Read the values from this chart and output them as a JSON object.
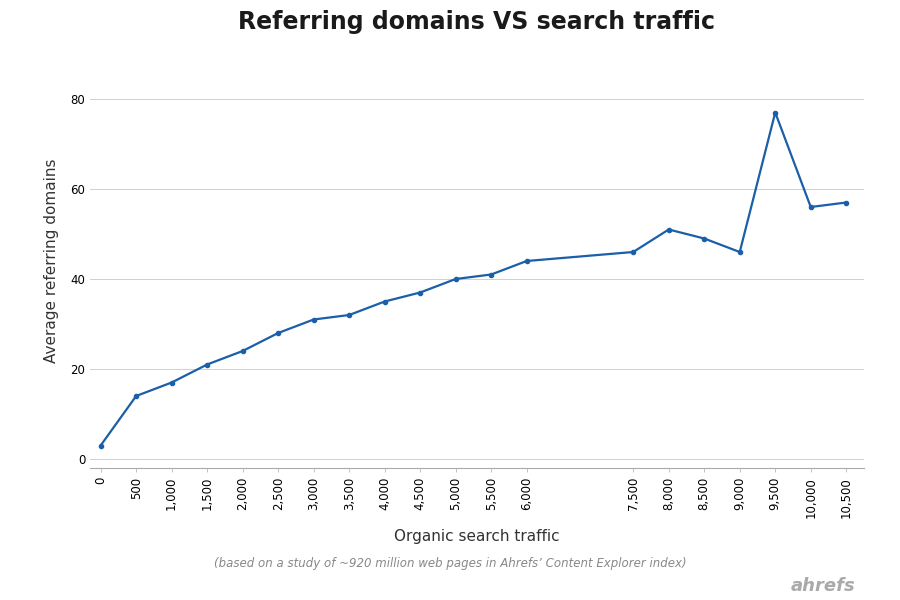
{
  "title": "Referring domains VS search traffic",
  "xlabel": "Organic search traffic",
  "ylabel": "Average referring domains",
  "footnote": "(based on a study of ~920 million web pages in Ahrefs’ Content Explorer index)",
  "branding": "ahrefs",
  "x": [
    0,
    500,
    1000,
    1500,
    2000,
    2500,
    3000,
    3500,
    4000,
    4500,
    5000,
    5500,
    6000,
    7500,
    8000,
    8500,
    9000,
    9500,
    10000,
    10500
  ],
  "y": [
    3,
    14,
    17,
    21,
    24,
    28,
    31,
    32,
    35,
    37,
    40,
    41,
    44,
    46,
    51,
    49,
    46,
    77,
    56,
    57
  ],
  "line_color": "#1a5fa8",
  "line_width": 1.6,
  "marker": "o",
  "marker_size": 3.0,
  "background_color": "#ffffff",
  "grid_color": "#d0d0d0",
  "title_fontsize": 17,
  "label_fontsize": 11,
  "tick_fontsize": 8.5,
  "footnote_fontsize": 8.5,
  "branding_fontsize": 13,
  "ylim": [
    -2,
    90
  ],
  "xlim": [
    -150,
    10750
  ],
  "yticks": [
    0,
    20,
    40,
    60,
    80
  ],
  "xticks": [
    0,
    500,
    1000,
    1500,
    2000,
    2500,
    3000,
    3500,
    4000,
    4500,
    5000,
    5500,
    6000,
    7500,
    8000,
    8500,
    9000,
    9500,
    10000,
    10500
  ]
}
